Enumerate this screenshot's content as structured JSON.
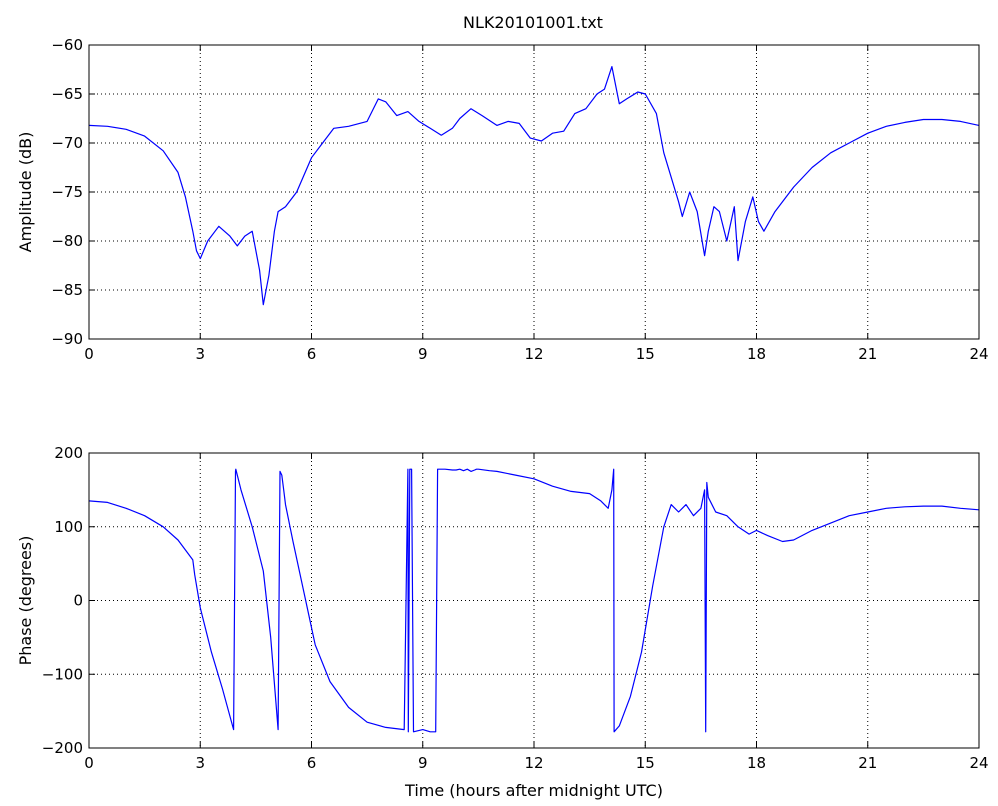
{
  "title": "NLK20101001.txt",
  "colors": {
    "series": "#0000ff",
    "axes": "#000000",
    "grid": "#000000",
    "background": "#ffffff"
  },
  "chart_data": [
    {
      "type": "line",
      "title": "NLK20101001.txt",
      "xlabel": "",
      "ylabel": "Amplitude (dB)",
      "xlim": [
        0,
        24
      ],
      "ylim": [
        -90,
        -60
      ],
      "xticks": [
        "0",
        "3",
        "6",
        "9",
        "12",
        "15",
        "18",
        "21",
        "24"
      ],
      "yticks": [
        "−90",
        "−85",
        "−80",
        "−75",
        "−70",
        "−65",
        "−60"
      ],
      "grid": true,
      "legend": "none",
      "series": [
        {
          "x": [
            0,
            0.5,
            1.0,
            1.5,
            2.0,
            2.4,
            2.6,
            2.8,
            2.9,
            3.0,
            3.2,
            3.5,
            3.8,
            4.0,
            4.2,
            4.4,
            4.6,
            4.7,
            4.85,
            5.0,
            5.1,
            5.3,
            5.6,
            6.0,
            6.3,
            6.6,
            7.0,
            7.5,
            7.8,
            8.0,
            8.3,
            8.6,
            8.9,
            9.2,
            9.5,
            9.8,
            10.0,
            10.3,
            10.6,
            11.0,
            11.3,
            11.6,
            11.9,
            12.2,
            12.5,
            12.8,
            13.1,
            13.4,
            13.7,
            13.9,
            14.1,
            14.3,
            14.5,
            14.8,
            15.0,
            15.3,
            15.5,
            15.7,
            15.9,
            16.0,
            16.2,
            16.4,
            16.6,
            16.7,
            16.85,
            17.0,
            17.2,
            17.4,
            17.5,
            17.7,
            17.9,
            18.05,
            18.2,
            18.5,
            19.0,
            19.5,
            20.0,
            20.5,
            21.0,
            21.5,
            22.0,
            22.5,
            23.0,
            23.5,
            24.0
          ],
          "y": [
            -68.2,
            -68.3,
            -68.6,
            -69.3,
            -70.8,
            -73.0,
            -75.5,
            -79.0,
            -81.0,
            -81.8,
            -80.0,
            -78.5,
            -79.5,
            -80.5,
            -79.5,
            -79.0,
            -83.0,
            -86.5,
            -83.5,
            -79.0,
            -77.0,
            -76.5,
            -75.0,
            -71.5,
            -70.0,
            -68.5,
            -68.3,
            -67.8,
            -65.5,
            -65.8,
            -67.2,
            -66.8,
            -67.8,
            -68.5,
            -69.2,
            -68.5,
            -67.5,
            -66.5,
            -67.2,
            -68.2,
            -67.8,
            -68.0,
            -69.5,
            -69.8,
            -69.0,
            -68.8,
            -67.0,
            -66.5,
            -65.0,
            -64.5,
            -62.2,
            -66.0,
            -65.5,
            -64.8,
            -65.0,
            -67.0,
            -71.0,
            -73.5,
            -76.0,
            -77.5,
            -75.0,
            -77.0,
            -81.5,
            -79.0,
            -76.5,
            -77.0,
            -80.0,
            -76.5,
            -82.0,
            -78.0,
            -75.5,
            -78.0,
            -79.0,
            -77.0,
            -74.5,
            -72.5,
            -71.0,
            -70.0,
            -69.0,
            -68.3,
            -67.9,
            -67.6,
            -67.6,
            -67.8,
            -68.2
          ]
        }
      ]
    },
    {
      "type": "line",
      "title": "",
      "xlabel": "Time (hours after midnight UTC)",
      "ylabel": "Phase (degrees)",
      "xlim": [
        0,
        24
      ],
      "ylim": [
        -200,
        200
      ],
      "xticks": [
        "0",
        "3",
        "6",
        "9",
        "12",
        "15",
        "18",
        "21",
        "24"
      ],
      "yticks": [
        "−200",
        "−100",
        "0",
        "100",
        "200"
      ],
      "grid": true,
      "legend": "none",
      "series": [
        {
          "x": [
            0,
            0.5,
            1.0,
            1.5,
            2.0,
            2.4,
            2.8,
            2.85,
            3.0,
            3.3,
            3.6,
            3.9,
            3.95,
            3.96,
            4.1,
            4.4,
            4.7,
            4.9,
            5.1,
            5.15,
            5.2,
            5.25,
            5.3,
            5.5,
            5.8,
            6.1,
            6.5,
            7.0,
            7.5,
            8.0,
            8.5,
            8.6,
            8.61,
            8.65,
            8.7,
            8.75,
            9.0,
            9.2,
            9.35,
            9.4,
            9.6,
            9.8,
            9.9,
            10.0,
            10.1,
            10.2,
            10.3,
            10.4,
            10.45,
            10.5,
            10.8,
            11.0,
            11.5,
            12.0,
            12.5,
            13.0,
            13.5,
            13.8,
            14.0,
            14.1,
            14.15,
            14.16,
            14.3,
            14.6,
            14.9,
            15.2,
            15.5,
            15.7,
            15.9,
            16.1,
            16.3,
            16.5,
            16.6,
            16.63,
            16.66,
            16.7,
            16.9,
            17.2,
            17.5,
            17.8,
            18.0,
            18.3,
            18.7,
            19.0,
            19.5,
            20.0,
            20.5,
            21.0,
            21.5,
            22.0,
            22.5,
            23.0,
            23.5,
            24.0
          ],
          "y": [
            135,
            133,
            125,
            115,
            100,
            82,
            55,
            35,
            -10,
            -70,
            -120,
            -175,
            175,
            178,
            150,
            100,
            40,
            -50,
            -175,
            175,
            170,
            150,
            130,
            80,
            10,
            -60,
            -110,
            -145,
            -165,
            -172,
            -175,
            178,
            -178,
            178,
            178,
            -178,
            -175,
            -178,
            -178,
            178,
            178,
            177,
            177,
            178,
            176,
            178,
            175,
            177,
            178,
            178,
            176,
            175,
            170,
            165,
            155,
            148,
            145,
            135,
            125,
            150,
            178,
            -178,
            -170,
            -130,
            -70,
            20,
            100,
            130,
            120,
            130,
            115,
            125,
            150,
            -178,
            160,
            140,
            120,
            115,
            100,
            90,
            95,
            88,
            80,
            82,
            95,
            105,
            115,
            120,
            125,
            127,
            128,
            128,
            125,
            123
          ]
        }
      ]
    }
  ]
}
